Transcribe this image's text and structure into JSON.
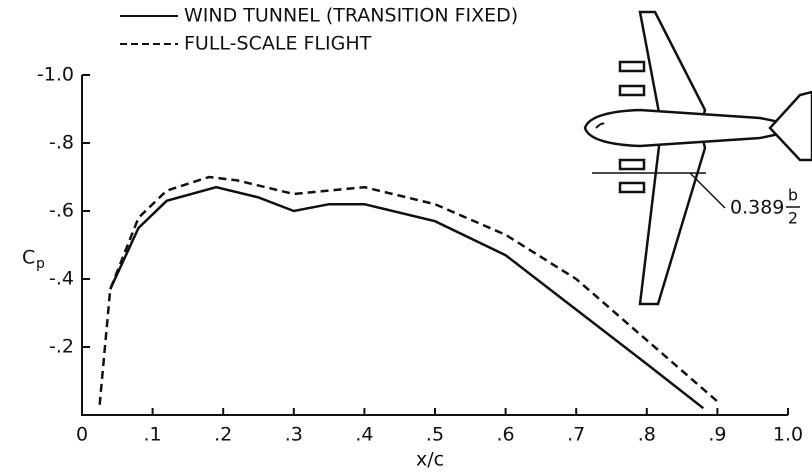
{
  "chart_data": {
    "type": "line",
    "y_label": "C",
    "y_label_sub": "p",
    "x_label": "x/c",
    "xlim": [
      0,
      1.0
    ],
    "ylim": [
      0,
      -1.0
    ],
    "xticks": [
      0,
      {
        "value": 0.1,
        "label": ".1"
      },
      {
        "value": 0.2,
        "label": ".2"
      },
      {
        "value": 0.3,
        "label": ".3"
      },
      {
        "value": 0.4,
        "label": ".4"
      },
      {
        "value": 0.5,
        "label": ".5"
      },
      {
        "value": 0.6,
        "label": ".6"
      },
      {
        "value": 0.7,
        "label": ".7"
      },
      {
        "value": 0.8,
        "label": ".8"
      },
      {
        "value": 0.9,
        "label": ".9"
      },
      {
        "value": 1.0,
        "label": "1.0"
      }
    ],
    "yticks": [
      {
        "value": -0.2,
        "label": "-.2"
      },
      {
        "value": -0.4,
        "label": "-.4"
      },
      {
        "value": -0.6,
        "label": "-.6"
      },
      {
        "value": -0.8,
        "label": "-.8"
      },
      {
        "value": -1.0,
        "label": "-1.0"
      }
    ],
    "series": [
      {
        "name": "WIND TUNNEL (TRANSITION FIXED)",
        "color": "#111111",
        "dashed": false,
        "x": [
          0.04,
          0.08,
          0.12,
          0.19,
          0.25,
          0.3,
          0.35,
          0.4,
          0.5,
          0.6,
          0.7,
          0.8,
          0.88
        ],
        "values": [
          -0.37,
          -0.55,
          -0.63,
          -0.67,
          -0.64,
          -0.6,
          -0.62,
          -0.62,
          -0.57,
          -0.47,
          -0.31,
          -0.15,
          -0.02
        ]
      },
      {
        "name": "FULL-SCALE FLIGHT",
        "color": "#111111",
        "dashed": true,
        "x": [
          0.025,
          0.04,
          0.08,
          0.12,
          0.18,
          0.22,
          0.3,
          0.4,
          0.5,
          0.6,
          0.7,
          0.8,
          0.9
        ],
        "values": [
          -0.03,
          -0.37,
          -0.58,
          -0.66,
          -0.7,
          -0.69,
          -0.65,
          -0.67,
          -0.62,
          -0.53,
          -0.4,
          -0.22,
          -0.04
        ]
      }
    ],
    "annotation": {
      "text": "0.389",
      "numerator": "b",
      "denominator": "2"
    }
  }
}
